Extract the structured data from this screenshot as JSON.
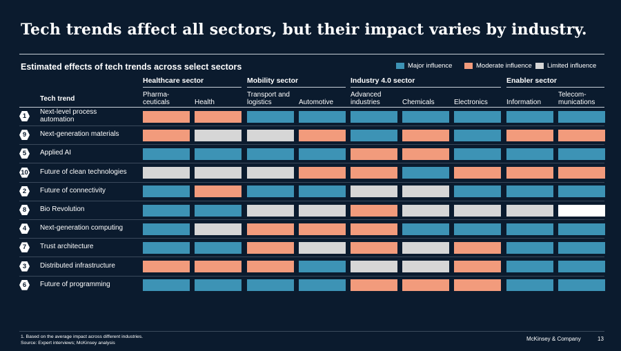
{
  "title": "Tech trends affect all sectors, but their impact varies by industry.",
  "subtitle": "Estimated effects of tech trends across select sectors",
  "colors": {
    "major": "#3d93b5",
    "moderate": "#f29b7c",
    "limited": "#d6d6d6",
    "full": "#ffffff"
  },
  "legend": [
    {
      "key": "major",
      "label": "Major influence"
    },
    {
      "key": "moderate",
      "label": "Moderate influence"
    },
    {
      "key": "limited",
      "label": "Limited influence"
    }
  ],
  "sectors": [
    "Healthcare sector",
    "Mobility sector",
    "Industry 4.0 sector",
    "Enabler sector"
  ],
  "trend_header": "Tech trend",
  "chart_data": {
    "type": "table",
    "title": "Estimated effects of tech trends across select sectors",
    "columns": [
      {
        "sector": "Healthcare sector",
        "label": "Pharma-\nceuticals"
      },
      {
        "sector": "Healthcare sector",
        "label": "Health"
      },
      {
        "sector": "Mobility sector",
        "label": "Transport and\nlogistics"
      },
      {
        "sector": "Mobility sector",
        "label": "Automotive"
      },
      {
        "sector": "Industry 4.0 sector",
        "label": "Advanced\nindustries"
      },
      {
        "sector": "Industry 4.0 sector",
        "label": "Chemicals"
      },
      {
        "sector": "Industry 4.0 sector",
        "label": "Electronics"
      },
      {
        "sector": "Enabler sector",
        "label": "Information"
      },
      {
        "sector": "Enabler sector",
        "label": "Telecom-\nmunications"
      }
    ],
    "rows": [
      {
        "num": "1",
        "label": "Next-level process\nautomation",
        "values": [
          "moderate",
          "moderate",
          "major",
          "major",
          "major",
          "major",
          "major",
          "major",
          "major"
        ]
      },
      {
        "num": "9",
        "label": "Next-generation materials",
        "values": [
          "moderate",
          "limited",
          "limited",
          "moderate",
          "major",
          "moderate",
          "major",
          "moderate",
          "moderate"
        ]
      },
      {
        "num": "5",
        "label": "Applied AI",
        "values": [
          "major",
          "major",
          "major",
          "major",
          "moderate",
          "moderate",
          "major",
          "major",
          "major"
        ]
      },
      {
        "num": "10",
        "label": "Future of clean technologies",
        "values": [
          "limited",
          "limited",
          "limited",
          "moderate",
          "moderate",
          "major",
          "moderate",
          "moderate",
          "moderate"
        ]
      },
      {
        "num": "2",
        "label": "Future of connectivity",
        "values": [
          "major",
          "moderate",
          "major",
          "major",
          "limited",
          "limited",
          "major",
          "major",
          "major"
        ]
      },
      {
        "num": "8",
        "label": "Bio Revolution",
        "values": [
          "major",
          "major",
          "limited",
          "limited",
          "moderate",
          "limited",
          "limited",
          "limited",
          "full"
        ]
      },
      {
        "num": "4",
        "label": "Next-generation computing",
        "values": [
          "major",
          "limited",
          "moderate",
          "moderate",
          "moderate",
          "major",
          "major",
          "major",
          "major"
        ]
      },
      {
        "num": "7",
        "label": "Trust architecture",
        "values": [
          "major",
          "major",
          "moderate",
          "limited",
          "moderate",
          "limited",
          "moderate",
          "major",
          "major"
        ]
      },
      {
        "num": "3",
        "label": "Distributed infrastructure",
        "values": [
          "moderate",
          "moderate",
          "moderate",
          "major",
          "limited",
          "limited",
          "moderate",
          "major",
          "major"
        ]
      },
      {
        "num": "6",
        "label": "Future of programming",
        "values": [
          "major",
          "major",
          "major",
          "major",
          "moderate",
          "moderate",
          "moderate",
          "major",
          "major"
        ]
      }
    ]
  },
  "footnote": "1. Based on the average impact across different industries.\nSource: Expert interviews; McKinsey analysis",
  "brand": "McKinsey & Company",
  "page_number": "13"
}
